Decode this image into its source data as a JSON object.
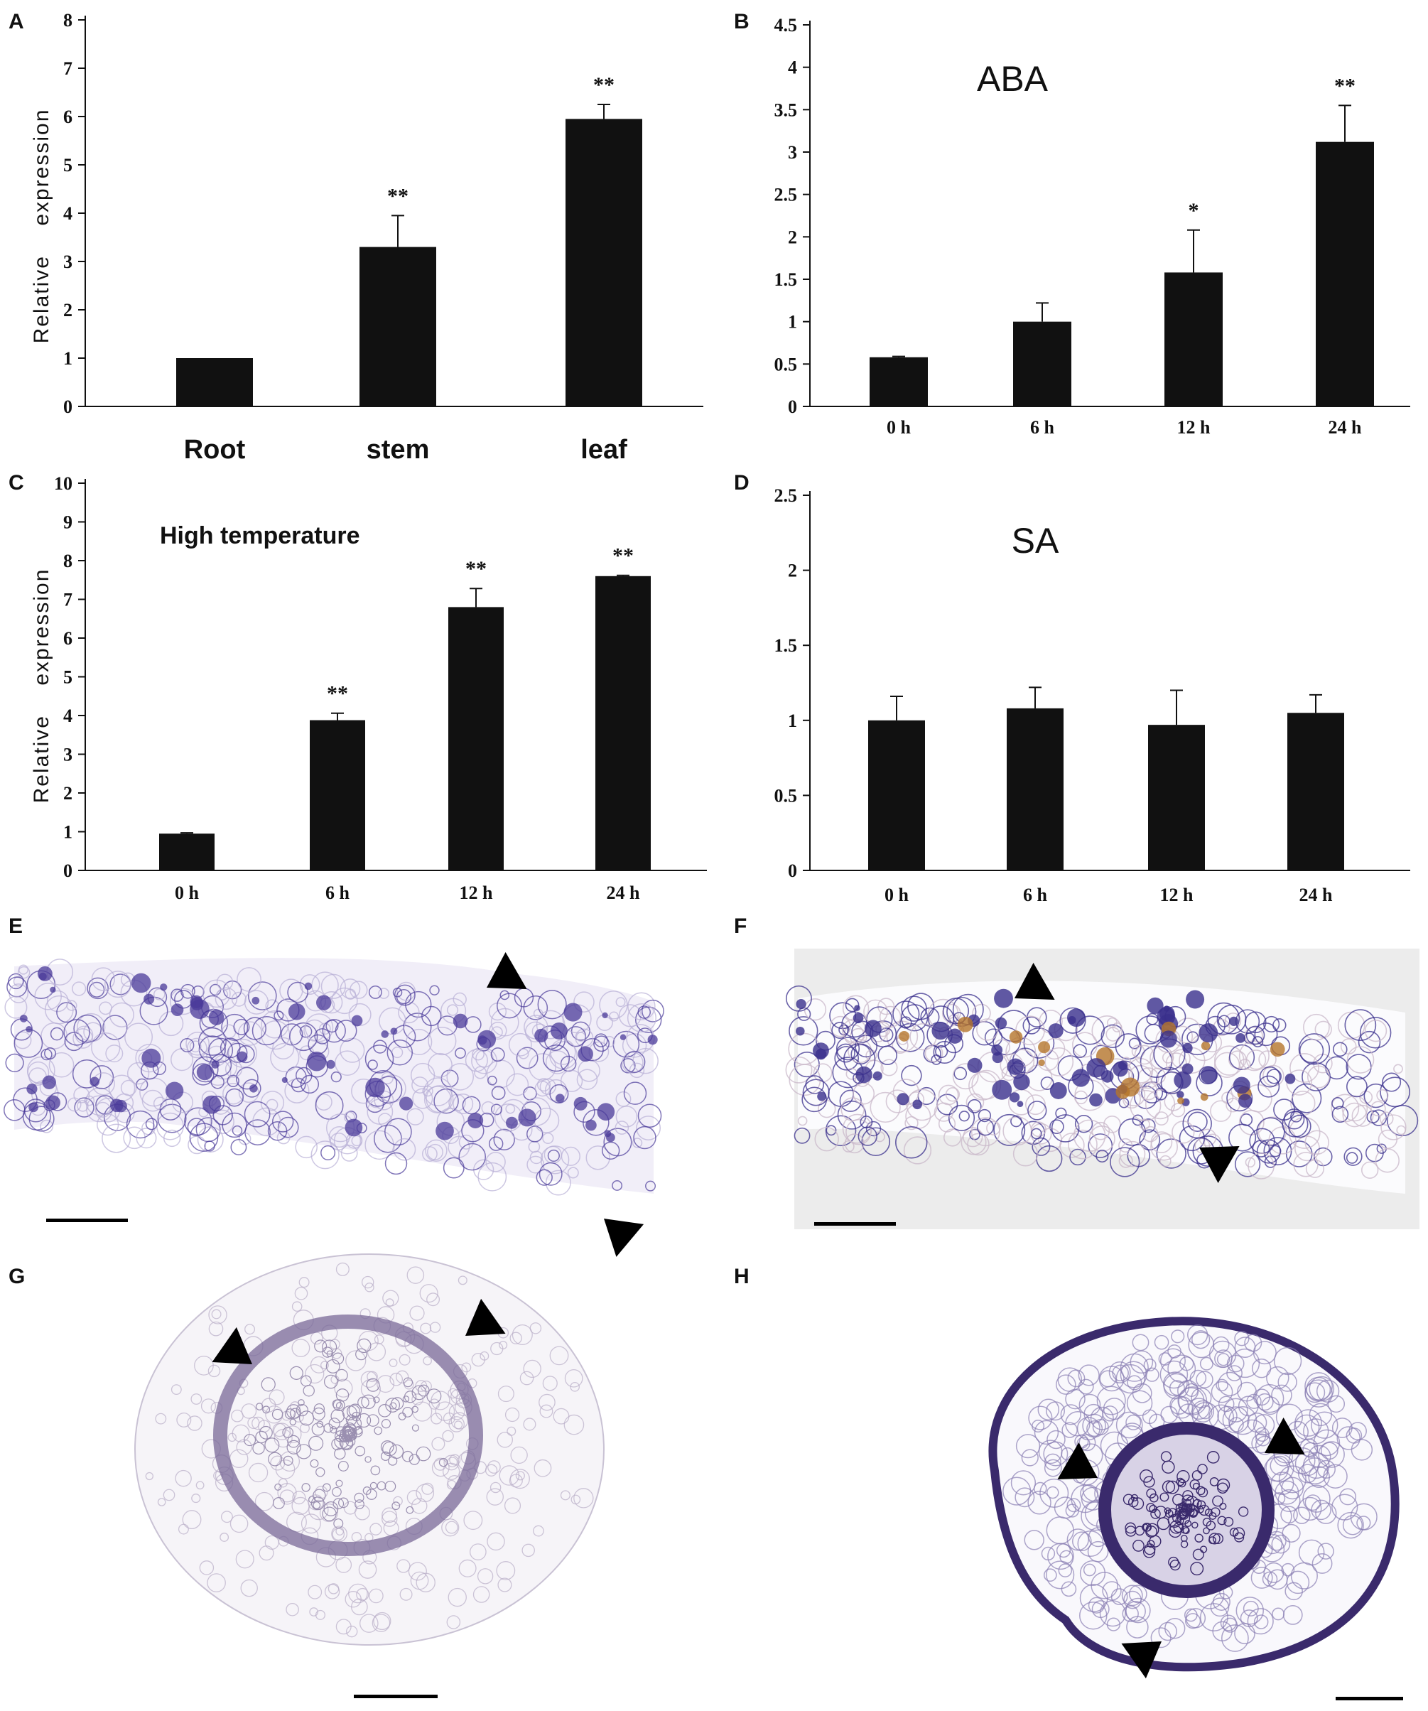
{
  "panels": {
    "A": "A",
    "B": "B",
    "C": "C",
    "D": "D",
    "E": "E",
    "F": "F",
    "G": "G",
    "H": "H"
  },
  "chart_data": [
    {
      "id": "A",
      "type": "bar",
      "title": "",
      "ylabel": "Relative    expression",
      "categories": [
        "Root",
        "stem",
        "leaf"
      ],
      "values": [
        1.0,
        3.3,
        5.95
      ],
      "errors": [
        0.0,
        0.65,
        0.3
      ],
      "annotations": [
        "",
        "**",
        "**"
      ],
      "ylim": [
        0,
        8
      ],
      "yticks": [
        "0",
        "1",
        "2",
        "3",
        "4",
        "5",
        "6",
        "7",
        "8"
      ],
      "color": "#111111",
      "grid": false,
      "legend": "none"
    },
    {
      "id": "B",
      "type": "bar",
      "title": "ABA",
      "ylabel": "",
      "categories": [
        "0 h",
        "6 h",
        "12 h",
        "24 h"
      ],
      "values": [
        0.58,
        1.0,
        1.58,
        3.12
      ],
      "errors": [
        0.01,
        0.22,
        0.5,
        0.43
      ],
      "annotations": [
        "",
        "",
        "*",
        "**"
      ],
      "ylim": [
        0,
        4.5
      ],
      "yticks": [
        "0",
        "0.5",
        "1",
        "1.5",
        "2",
        "2.5",
        "3",
        "3.5",
        "4",
        "4.5"
      ],
      "color": "#111111",
      "grid": false,
      "legend": "none"
    },
    {
      "id": "C",
      "type": "bar",
      "title": "High temperature",
      "ylabel": "Relative    expression",
      "categories": [
        "0 h",
        "6 h",
        "12 h",
        "24 h"
      ],
      "values": [
        0.95,
        3.88,
        6.8,
        7.6
      ],
      "errors": [
        0.02,
        0.18,
        0.48,
        0.02
      ],
      "annotations": [
        "",
        "**",
        "**",
        "**"
      ],
      "ylim": [
        0,
        10
      ],
      "yticks": [
        "0",
        "1",
        "2",
        "3",
        "4",
        "5",
        "6",
        "7",
        "8",
        "9",
        "10"
      ],
      "color": "#111111",
      "grid": false,
      "legend": "none"
    },
    {
      "id": "D",
      "type": "bar",
      "title": "SA",
      "ylabel": "",
      "categories": [
        "0 h",
        "6 h",
        "12 h",
        "24 h"
      ],
      "values": [
        1.0,
        1.08,
        0.97,
        1.05
      ],
      "errors": [
        0.16,
        0.14,
        0.23,
        0.12
      ],
      "annotations": [
        "",
        "",
        "",
        ""
      ],
      "ylim": [
        0,
        2.5
      ],
      "yticks": [
        "0",
        "0.5",
        "1",
        "1.5",
        "2",
        "2.5"
      ],
      "color": "#111111",
      "grid": false,
      "legend": "none"
    }
  ],
  "micrographs": {
    "E": {
      "subject": "leaf cross-section, in situ hybridization",
      "stain": "#4a3a9a",
      "background": "#ffffff"
    },
    "F": {
      "subject": "leaf cross-section, in situ hybridization",
      "stain": "#3a2f8c",
      "background": "#ececec"
    },
    "G": {
      "subject": "stem cross-section, in situ hybridization",
      "stain": "#7a6a98",
      "background": "#ffffff"
    },
    "H": {
      "subject": "root cross-section, in situ hybridization",
      "stain": "#3a2a6c",
      "background": "#ffffff"
    }
  }
}
